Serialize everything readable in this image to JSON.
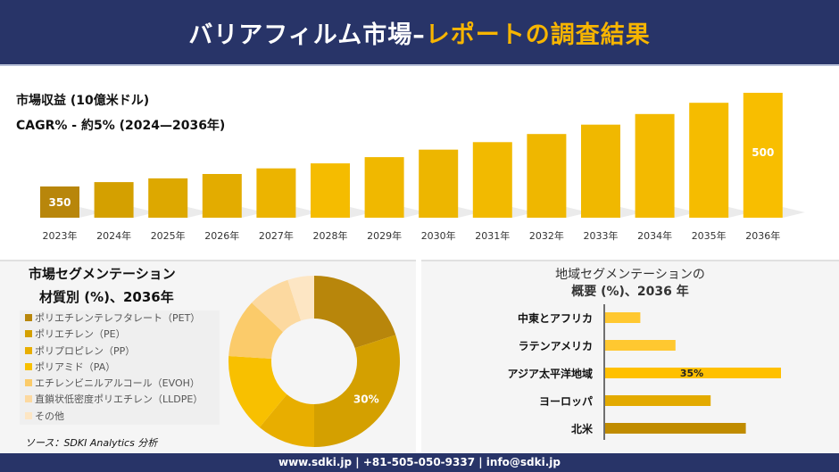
{
  "header": {
    "title_main": "バリアフィルム市場–",
    "title_accent": "レポートの調査結果"
  },
  "revenue_label": "市場収益 (10億米ドル)",
  "cagr_label": "CAGR% - 約5% (2024—2036年)",
  "footer": "www.sdki.jp | +81-505-050-9337 | info@sdki.jp",
  "source": "ソース：SDKI Analytics 分析",
  "chart_data": [
    {
      "type": "bar",
      "categories": [
        "2023年",
        "2024年",
        "2025年",
        "2026年",
        "2027年",
        "2028年",
        "2029年",
        "2030年",
        "2031年",
        "2032年",
        "2033年",
        "2034年",
        "2035年",
        "2036年"
      ],
      "values": [
        350,
        357,
        363,
        370,
        379,
        387,
        397,
        409,
        421,
        434,
        449,
        466,
        484,
        500
      ],
      "data_labels": {
        "0": "350",
        "13": "500"
      },
      "colors": [
        "#B8860B",
        "#D4A000",
        "#DDA800",
        "#E3AC00",
        "#ECB400",
        "#F5BC00",
        "#F0B800",
        "#EDB600",
        "#F2BA00",
        "#EFB700",
        "#F0B800",
        "#F3BA00",
        "#F5BC00",
        "#F8BE00"
      ]
    },
    {
      "type": "pie",
      "title": "市場セグメンテーション",
      "subtitle": "材質別 (%)、2036年",
      "categories": [
        "ポリエチレンテレフタレート（PET）",
        "ポリエチレン（PE）",
        "ポリプロピレン（PP）",
        "ポリアミド（PA）",
        "エチレンビニルアルコール（EVOH）",
        "直鎖状低密度ポリエチレン（LLDPE）",
        "その他"
      ],
      "values": [
        20,
        30,
        11,
        15,
        11,
        8,
        5
      ],
      "data_labels": {
        "1": "30%"
      },
      "colors": [
        "#B8860B",
        "#D4A000",
        "#E8AE00",
        "#F8C000",
        "#FBCB6A",
        "#FCD9A0",
        "#FDE6C4"
      ]
    },
    {
      "type": "bar",
      "orientation": "horizontal",
      "title": "地域セグメンテーションの",
      "subtitle": "概要 (%)、2036 年",
      "categories": [
        "中東とアフリカ",
        "ラテンアメリカ",
        "アジア太平洋地域",
        "ヨーロッパ",
        "北米"
      ],
      "values": [
        7,
        14,
        35,
        21,
        28
      ],
      "data_labels": {
        "2": "35%"
      },
      "colors": [
        "#FFC830",
        "#FFC830",
        "#FFC000",
        "#E3AA00",
        "#C08C00"
      ]
    }
  ]
}
